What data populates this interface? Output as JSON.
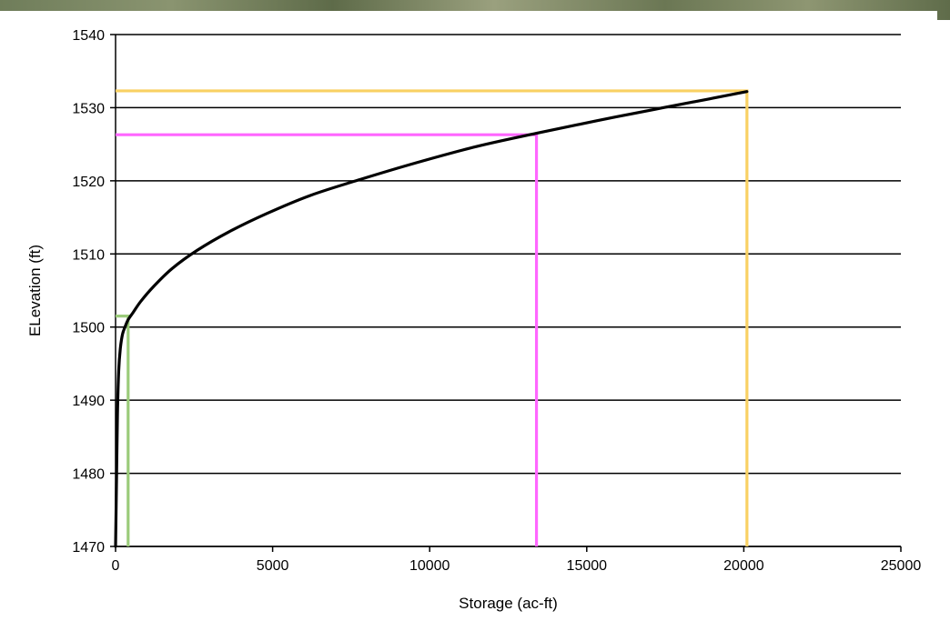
{
  "chart_data": {
    "type": "line",
    "title": "",
    "xlabel": "Storage (ac-ft)",
    "ylabel": "ELevation (ft)",
    "xlim": [
      0,
      25000
    ],
    "ylim": [
      1470,
      1540
    ],
    "x_ticks": [
      "0",
      "5000",
      "10000",
      "15000",
      "20000",
      "25000"
    ],
    "y_ticks": [
      "1470",
      "1480",
      "1490",
      "1500",
      "1510",
      "1520",
      "1530",
      "1540"
    ],
    "grid": "horizontal",
    "legend": "none",
    "series": [
      {
        "color": "#000000",
        "x": [
          0,
          30,
          60,
          100,
          150,
          220,
          300,
          400,
          560,
          800,
          1200,
          1800,
          2600,
          3600,
          4800,
          6200,
          7800,
          9600,
          11500,
          13400,
          15300,
          17200,
          18900,
          20100
        ],
        "y": [
          1470,
          1479,
          1488,
          1494,
          1497,
          1499,
          1500,
          1501,
          1502,
          1503.5,
          1505.5,
          1508,
          1510.5,
          1513,
          1515.5,
          1518,
          1520.2,
          1522.5,
          1524.7,
          1526.5,
          1528.2,
          1529.8,
          1531.2,
          1532.2
        ]
      }
    ],
    "reference_lines": [
      {
        "color": "#9bcb7a",
        "storage": 400,
        "elevation": 1501.5
      },
      {
        "color": "#ff66ff",
        "storage": 13400,
        "elevation": 1526.3
      },
      {
        "color": "#f9d163",
        "storage": 20100,
        "elevation": 1532.3
      }
    ]
  }
}
